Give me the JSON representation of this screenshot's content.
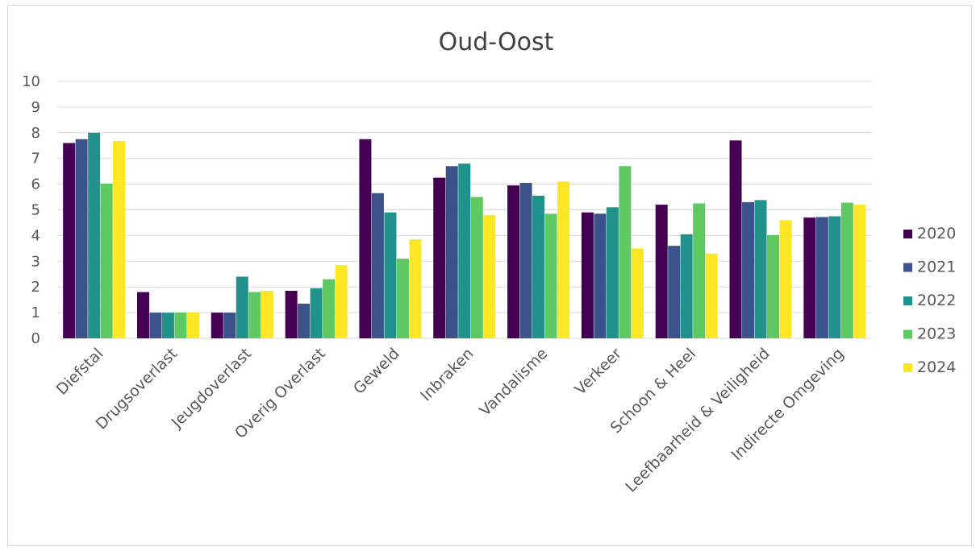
{
  "chart_data": {
    "type": "bar",
    "title": "Oud-Oost",
    "xlabel": "",
    "ylabel": "",
    "ylim": [
      0,
      10
    ],
    "yticks": [
      0,
      1,
      2,
      3,
      4,
      5,
      6,
      7,
      8,
      9,
      10
    ],
    "grid": true,
    "legend_position": "right",
    "categories": [
      "Diefstal",
      "Drugsoverlast",
      "Jeugdoverlast",
      "Overig Overlast",
      "Geweld",
      "Inbraken",
      "Vandalisme",
      "Verkeer",
      "Schoon & Heel",
      "Leefbaarheid & Veiligheid",
      "Indirecte Omgeving"
    ],
    "series": [
      {
        "name": "2020",
        "color": "#440154",
        "values": [
          7.6,
          1.8,
          1.0,
          1.85,
          7.75,
          6.25,
          5.95,
          4.9,
          5.2,
          7.7,
          4.7
        ]
      },
      {
        "name": "2021",
        "color": "#3b528b",
        "values": [
          7.75,
          1.0,
          1.0,
          1.35,
          5.65,
          6.7,
          6.05,
          4.85,
          3.6,
          5.3,
          4.72
        ]
      },
      {
        "name": "2022",
        "color": "#21918c",
        "values": [
          8.0,
          1.0,
          2.4,
          1.95,
          4.9,
          6.8,
          5.55,
          5.1,
          4.05,
          5.38,
          4.75
        ]
      },
      {
        "name": "2023",
        "color": "#5ec962",
        "values": [
          6.02,
          1.0,
          1.8,
          2.3,
          3.1,
          5.5,
          4.85,
          6.7,
          5.25,
          4.02,
          5.28
        ]
      },
      {
        "name": "2024",
        "color": "#fde725",
        "values": [
          7.68,
          1.0,
          1.85,
          2.85,
          3.85,
          4.8,
          6.1,
          3.5,
          3.3,
          4.6,
          5.2
        ]
      }
    ]
  }
}
